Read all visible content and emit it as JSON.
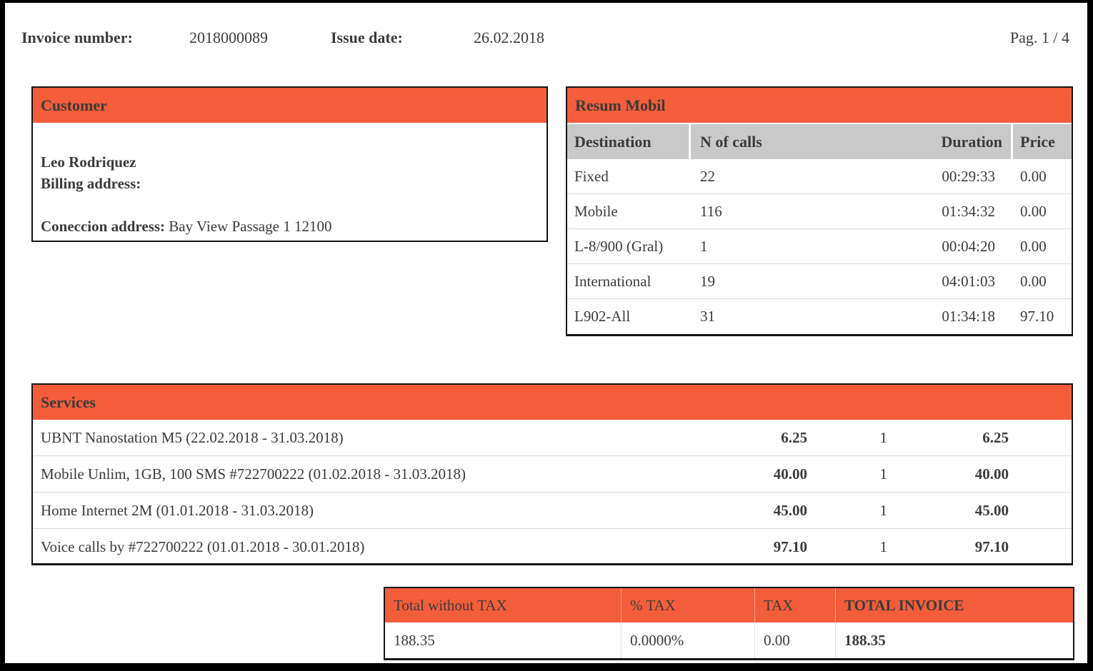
{
  "colors": {
    "accent": "#f45d39",
    "column_header_gray": "#c9c9c9",
    "text": "#3b3b3b"
  },
  "header": {
    "invoice_number_label": "Invoice number:",
    "invoice_number": "2018000089",
    "issue_date_label": "Issue date:",
    "issue_date": "26.02.2018",
    "page_label": "Pag. 1 / 4"
  },
  "customer": {
    "title": "Customer",
    "name": "Leo Rodriquez",
    "billing_label": "Billing address:",
    "connection_label": "Coneccion address:",
    "connection_value": "Bay View Passage 1 12100"
  },
  "resum_mobil": {
    "title": "Resum Mobil",
    "columns": {
      "destination": "Destination",
      "calls": "N of calls",
      "duration": "Duration",
      "price": "Price"
    },
    "rows": [
      {
        "destination": "Fixed",
        "calls": "22",
        "duration": "00:29:33",
        "price": "0.00"
      },
      {
        "destination": "Mobile",
        "calls": "116",
        "duration": "01:34:32",
        "price": "0.00"
      },
      {
        "destination": "L-8/900 (Gral)",
        "calls": "1",
        "duration": "00:04:20",
        "price": "0.00"
      },
      {
        "destination": "International",
        "calls": "19",
        "duration": "04:01:03",
        "price": "0.00"
      },
      {
        "destination": "L902-All",
        "calls": "31",
        "duration": "01:34:18",
        "price": "97.10"
      }
    ]
  },
  "services": {
    "title": "Services",
    "rows": [
      {
        "description": "UBNT Nanostation M5 (22.02.2018 - 31.03.2018)",
        "unit_price": "6.25",
        "quantity": "1",
        "total": "6.25"
      },
      {
        "description": "Mobile Unlim, 1GB, 100 SMS #722700222 (01.02.2018 - 31.03.2018)",
        "unit_price": "40.00",
        "quantity": "1",
        "total": "40.00"
      },
      {
        "description": "Home Internet 2M (01.01.2018 - 31.03.2018)",
        "unit_price": "45.00",
        "quantity": "1",
        "total": "45.00"
      },
      {
        "description": "Voice calls by #722700222 (01.01.2018 - 30.01.2018)",
        "unit_price": "97.10",
        "quantity": "1",
        "total": "97.10"
      }
    ]
  },
  "totals": {
    "total_without_tax_label": "Total without TAX",
    "pct_tax_label": "% TAX",
    "tax_label": "TAX",
    "total_invoice_label": "TOTAL INVOICE",
    "total_without_tax": "188.35",
    "pct_tax": "0.0000%",
    "tax": "0.00",
    "total_invoice": "188.35"
  }
}
